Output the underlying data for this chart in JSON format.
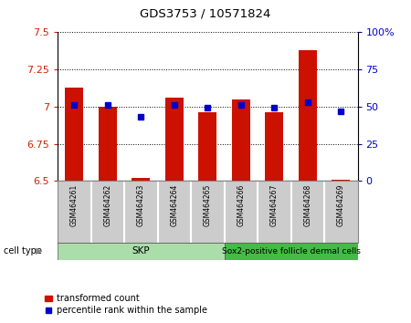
{
  "title": "GDS3753 / 10571824",
  "samples": [
    "GSM464261",
    "GSM464262",
    "GSM464263",
    "GSM464264",
    "GSM464265",
    "GSM464266",
    "GSM464267",
    "GSM464268",
    "GSM464269"
  ],
  "transformed_count": [
    7.13,
    7.0,
    6.52,
    7.06,
    6.96,
    7.05,
    6.96,
    7.38,
    6.51
  ],
  "percentile_rank": [
    51,
    51,
    43,
    51,
    49,
    51,
    49,
    53,
    47
  ],
  "bar_bottom": 6.5,
  "ylim_left": [
    6.5,
    7.5
  ],
  "ylim_right": [
    0,
    100
  ],
  "yticks_left": [
    6.5,
    6.75,
    7.0,
    7.25,
    7.5
  ],
  "yticks_right": [
    0,
    25,
    50,
    75,
    100
  ],
  "ytick_labels_left": [
    "6.5",
    "6.75",
    "7",
    "7.25",
    "7.5"
  ],
  "ytick_labels_right": [
    "0",
    "25",
    "50",
    "75",
    "100%"
  ],
  "bar_color": "#CC1100",
  "dot_color": "#0000CC",
  "bar_width": 0.55,
  "skp_samples": [
    0,
    1,
    2,
    3,
    4
  ],
  "sox2_samples": [
    5,
    6,
    7,
    8
  ],
  "skp_label": "SKP",
  "sox2_label": "Sox2-positive follicle dermal cells",
  "skp_color": "#aaddaa",
  "sox2_color": "#44bb44",
  "cell_type_label": "cell type",
  "legend_bar_label": "transformed count",
  "legend_dot_label": "percentile rank within the sample",
  "tick_color_left": "#CC2200",
  "tick_color_right": "#0000CC",
  "sample_box_color": "#cccccc",
  "sample_box_edge": "#888888"
}
